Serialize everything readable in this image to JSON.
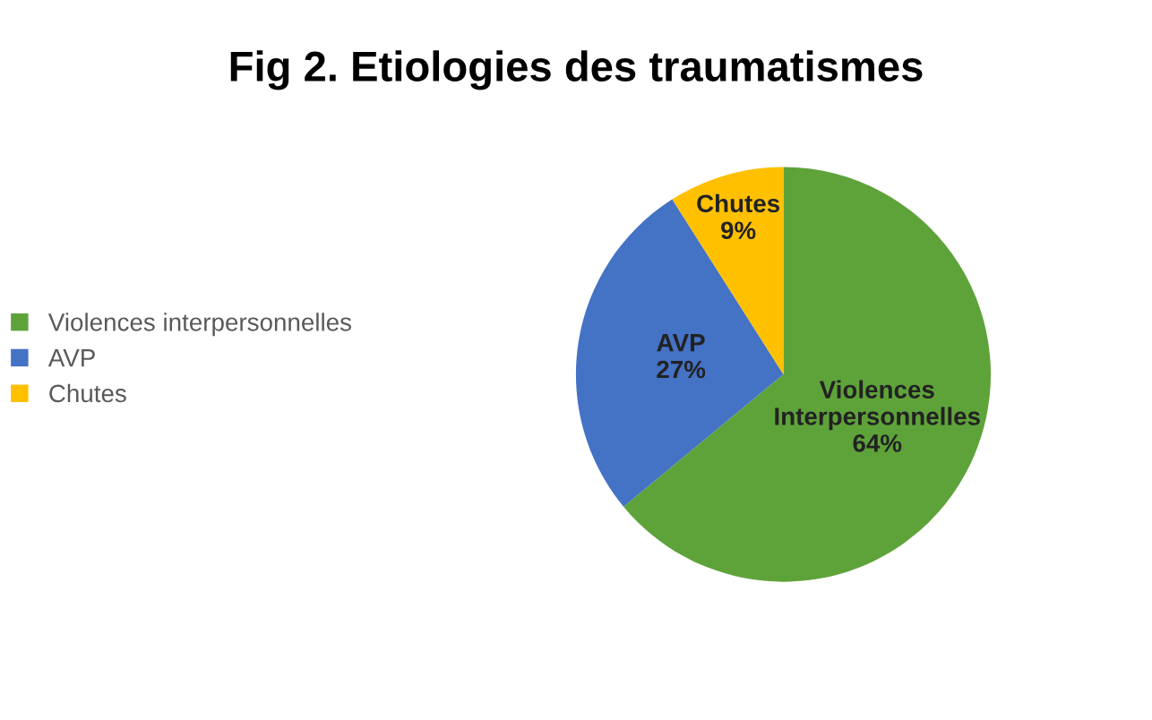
{
  "chart_data": {
    "type": "pie",
    "title": "Fig 2. Etiologies des traumatismes",
    "categories": [
      "Violences interpersonnelles",
      "AVP",
      "Chutes"
    ],
    "values": [
      64,
      27,
      9
    ],
    "colors": [
      "#5ea33a",
      "#4472c4",
      "#ffc000"
    ],
    "value_labels": [
      "Violences\nInterpersonnelles\n64%",
      "AVP\n27%",
      "Chutes\n9%"
    ],
    "legend": "left"
  }
}
